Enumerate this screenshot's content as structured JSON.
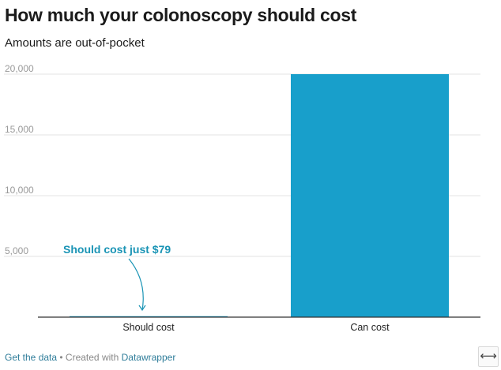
{
  "header": {
    "title": "How much your colonoscopy should cost",
    "subtitle": "Amounts are out-of-pocket"
  },
  "footer": {
    "data_link": "Get the data",
    "separator": " • Created with ",
    "brand_link": "Datawrapper"
  },
  "icons": {
    "resize": "resize-horizontal-icon",
    "resize_glyph": "⟷"
  },
  "colors": {
    "bar": "#189fcb",
    "annotation": "#1a94b5",
    "grid": "#e3e3e3",
    "baseline": "#333333",
    "tick_text": "#999999",
    "category_text": "#222222"
  },
  "chart_data": {
    "type": "bar",
    "categories": [
      "Should cost",
      "Can cost"
    ],
    "values": [
      79,
      20000
    ],
    "ylim": [
      0,
      20000
    ],
    "yticks": [
      5000,
      10000,
      15000,
      20000
    ],
    "ytick_labels": [
      "5,000",
      "10,000",
      "15,000",
      "20,000"
    ],
    "grid": true,
    "annotations": [
      {
        "text": "Should cost just $79",
        "category": "Should cost",
        "value": 79
      }
    ]
  }
}
